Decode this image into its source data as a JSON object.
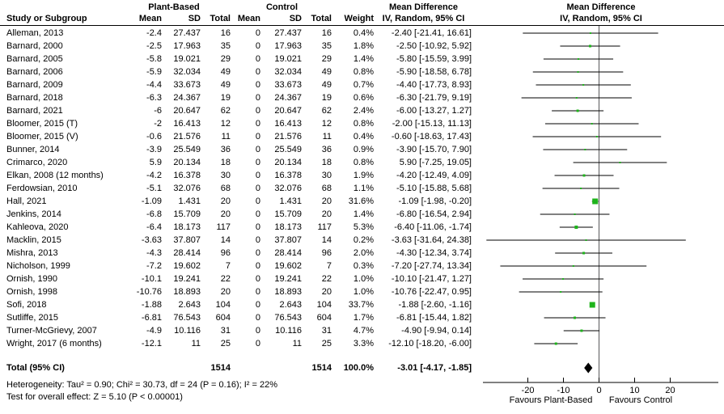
{
  "labels": {
    "study": "Study or Subgroup",
    "group1": "Plant-Based",
    "group2": "Control",
    "mean": "Mean",
    "sd": "SD",
    "total": "Total",
    "weight": "Weight",
    "md_title": "Mean Difference",
    "md_method": "IV, Random, 95% CI"
  },
  "chart_data": {
    "type": "forest",
    "title": "Mean Difference",
    "effect_measure": "IV, Random, 95% CI",
    "studies": [
      {
        "name": "Alleman, 2013",
        "mean1": "-2.4",
        "sd1": "27.437",
        "n1": "16",
        "mean2": "0",
        "sd2": "27.437",
        "n2": "16",
        "weight": "0.4%",
        "w": 0.4,
        "md": -2.4,
        "lo": -21.41,
        "hi": 16.61,
        "ci_text": "-2.40 [-21.41, 16.61]"
      },
      {
        "name": "Barnard, 2000",
        "mean1": "-2.5",
        "sd1": "17.963",
        "n1": "35",
        "mean2": "0",
        "sd2": "17.963",
        "n2": "35",
        "weight": "1.8%",
        "w": 1.8,
        "md": -2.5,
        "lo": -10.92,
        "hi": 5.92,
        "ci_text": "-2.50 [-10.92, 5.92]"
      },
      {
        "name": "Barnard, 2005",
        "mean1": "-5.8",
        "sd1": "19.021",
        "n1": "29",
        "mean2": "0",
        "sd2": "19.021",
        "n2": "29",
        "weight": "1.4%",
        "w": 1.4,
        "md": -5.8,
        "lo": -15.59,
        "hi": 3.99,
        "ci_text": "-5.80 [-15.59, 3.99]"
      },
      {
        "name": "Barnard, 2006",
        "mean1": "-5.9",
        "sd1": "32.034",
        "n1": "49",
        "mean2": "0",
        "sd2": "32.034",
        "n2": "49",
        "weight": "0.8%",
        "w": 0.8,
        "md": -5.9,
        "lo": -18.58,
        "hi": 6.78,
        "ci_text": "-5.90 [-18.58, 6.78]"
      },
      {
        "name": "Barnard, 2009",
        "mean1": "-4.4",
        "sd1": "33.673",
        "n1": "49",
        "mean2": "0",
        "sd2": "33.673",
        "n2": "49",
        "weight": "0.7%",
        "w": 0.7,
        "md": -4.4,
        "lo": -17.73,
        "hi": 8.93,
        "ci_text": "-4.40 [-17.73, 8.93]"
      },
      {
        "name": "Barnard, 2018",
        "mean1": "-6.3",
        "sd1": "24.367",
        "n1": "19",
        "mean2": "0",
        "sd2": "24.367",
        "n2": "19",
        "weight": "0.6%",
        "w": 0.6,
        "md": -6.3,
        "lo": -21.79,
        "hi": 9.19,
        "ci_text": "-6.30 [-21.79, 9.19]"
      },
      {
        "name": "Barnard, 2021",
        "mean1": "-6",
        "sd1": "20.647",
        "n1": "62",
        "mean2": "0",
        "sd2": "20.647",
        "n2": "62",
        "weight": "2.4%",
        "w": 2.4,
        "md": -6.0,
        "lo": -13.27,
        "hi": 1.27,
        "ci_text": "-6.00 [-13.27, 1.27]"
      },
      {
        "name": "Bloomer, 2015 (T)",
        "mean1": "-2",
        "sd1": "16.413",
        "n1": "12",
        "mean2": "0",
        "sd2": "16.413",
        "n2": "12",
        "weight": "0.8%",
        "w": 0.8,
        "md": -2.0,
        "lo": -15.13,
        "hi": 11.13,
        "ci_text": "-2.00 [-15.13, 11.13]"
      },
      {
        "name": "Bloomer, 2015 (V)",
        "mean1": "-0.6",
        "sd1": "21.576",
        "n1": "11",
        "mean2": "0",
        "sd2": "21.576",
        "n2": "11",
        "weight": "0.4%",
        "w": 0.4,
        "md": -0.6,
        "lo": -18.63,
        "hi": 17.43,
        "ci_text": "-0.60 [-18.63, 17.43]"
      },
      {
        "name": "Bunner, 2014",
        "mean1": "-3.9",
        "sd1": "25.549",
        "n1": "36",
        "mean2": "0",
        "sd2": "25.549",
        "n2": "36",
        "weight": "0.9%",
        "w": 0.9,
        "md": -3.9,
        "lo": -15.7,
        "hi": 7.9,
        "ci_text": "-3.90 [-15.70, 7.90]"
      },
      {
        "name": "Crimarco, 2020",
        "mean1": "5.9",
        "sd1": "20.134",
        "n1": "18",
        "mean2": "0",
        "sd2": "20.134",
        "n2": "18",
        "weight": "0.8%",
        "w": 0.8,
        "md": 5.9,
        "lo": -7.25,
        "hi": 19.05,
        "ci_text": "5.90 [-7.25, 19.05]"
      },
      {
        "name": "Elkan, 2008 (12 months)",
        "mean1": "-4.2",
        "sd1": "16.378",
        "n1": "30",
        "mean2": "0",
        "sd2": "16.378",
        "n2": "30",
        "weight": "1.9%",
        "w": 1.9,
        "md": -4.2,
        "lo": -12.49,
        "hi": 4.09,
        "ci_text": "-4.20 [-12.49, 4.09]"
      },
      {
        "name": "Ferdowsian, 2010",
        "mean1": "-5.1",
        "sd1": "32.076",
        "n1": "68",
        "mean2": "0",
        "sd2": "32.076",
        "n2": "68",
        "weight": "1.1%",
        "w": 1.1,
        "md": -5.1,
        "lo": -15.88,
        "hi": 5.68,
        "ci_text": "-5.10 [-15.88, 5.68]"
      },
      {
        "name": "Hall, 2021",
        "mean1": "-1.09",
        "sd1": "1.431",
        "n1": "20",
        "mean2": "0",
        "sd2": "1.431",
        "n2": "20",
        "weight": "31.6%",
        "w": 31.6,
        "md": -1.09,
        "lo": -1.98,
        "hi": -0.2,
        "ci_text": "-1.09 [-1.98, -0.20]"
      },
      {
        "name": "Jenkins, 2014",
        "mean1": "-6.8",
        "sd1": "15.709",
        "n1": "20",
        "mean2": "0",
        "sd2": "15.709",
        "n2": "20",
        "weight": "1.4%",
        "w": 1.4,
        "md": -6.8,
        "lo": -16.54,
        "hi": 2.94,
        "ci_text": "-6.80 [-16.54, 2.94]"
      },
      {
        "name": "Kahleova, 2020",
        "mean1": "-6.4",
        "sd1": "18.173",
        "n1": "117",
        "mean2": "0",
        "sd2": "18.173",
        "n2": "117",
        "weight": "5.3%",
        "w": 5.3,
        "md": -6.4,
        "lo": -11.06,
        "hi": -1.74,
        "ci_text": "-6.40 [-11.06, -1.74]"
      },
      {
        "name": "Macklin, 2015",
        "mean1": "-3.63",
        "sd1": "37.807",
        "n1": "14",
        "mean2": "0",
        "sd2": "37.807",
        "n2": "14",
        "weight": "0.2%",
        "w": 0.2,
        "md": -3.63,
        "lo": -31.64,
        "hi": 24.38,
        "ci_text": "-3.63 [-31.64, 24.38]"
      },
      {
        "name": "Mishra, 2013",
        "mean1": "-4.3",
        "sd1": "28.414",
        "n1": "96",
        "mean2": "0",
        "sd2": "28.414",
        "n2": "96",
        "weight": "2.0%",
        "w": 2.0,
        "md": -4.3,
        "lo": -12.34,
        "hi": 3.74,
        "ci_text": "-4.30 [-12.34, 3.74]"
      },
      {
        "name": "Nicholson, 1999",
        "mean1": "-7.2",
        "sd1": "19.602",
        "n1": "7",
        "mean2": "0",
        "sd2": "19.602",
        "n2": "7",
        "weight": "0.3%",
        "w": 0.3,
        "md": -7.2,
        "lo": -27.74,
        "hi": 13.34,
        "ci_text": "-7.20 [-27.74, 13.34]"
      },
      {
        "name": "Ornish, 1990",
        "mean1": "-10.1",
        "sd1": "19.241",
        "n1": "22",
        "mean2": "0",
        "sd2": "19.241",
        "n2": "22",
        "weight": "1.0%",
        "w": 1.0,
        "md": -10.1,
        "lo": -21.47,
        "hi": 1.27,
        "ci_text": "-10.10 [-21.47, 1.27]"
      },
      {
        "name": "Ornish, 1998",
        "mean1": "-10.76",
        "sd1": "18.893",
        "n1": "20",
        "mean2": "0",
        "sd2": "18.893",
        "n2": "20",
        "weight": "1.0%",
        "w": 1.0,
        "md": -10.76,
        "lo": -22.47,
        "hi": 0.95,
        "ci_text": "-10.76 [-22.47, 0.95]"
      },
      {
        "name": "Sofi, 2018",
        "mean1": "-1.88",
        "sd1": "2.643",
        "n1": "104",
        "mean2": "0",
        "sd2": "2.643",
        "n2": "104",
        "weight": "33.7%",
        "w": 33.7,
        "md": -1.88,
        "lo": -2.6,
        "hi": -1.16,
        "ci_text": "-1.88 [-2.60, -1.16]"
      },
      {
        "name": "Sutliffe, 2015",
        "mean1": "-6.81",
        "sd1": "76.543",
        "n1": "604",
        "mean2": "0",
        "sd2": "76.543",
        "n2": "604",
        "weight": "1.7%",
        "w": 1.7,
        "md": -6.81,
        "lo": -15.44,
        "hi": 1.82,
        "ci_text": "-6.81 [-15.44, 1.82]"
      },
      {
        "name": "Turner-McGrievy, 2007",
        "mean1": "-4.9",
        "sd1": "10.116",
        "n1": "31",
        "mean2": "0",
        "sd2": "10.116",
        "n2": "31",
        "weight": "4.7%",
        "w": 4.7,
        "md": -4.9,
        "lo": -9.94,
        "hi": 0.14,
        "ci_text": "-4.90 [-9.94, 0.14]"
      },
      {
        "name": "Wright, 2017 (6 months)",
        "mean1": "-12.1",
        "sd1": "11",
        "n1": "25",
        "mean2": "0",
        "sd2": "11",
        "n2": "25",
        "weight": "3.3%",
        "w": 3.3,
        "md": -12.1,
        "lo": -18.2,
        "hi": -6.0,
        "ci_text": "-12.10 [-18.20, -6.00]"
      }
    ],
    "total": {
      "label": "Total (95% CI)",
      "n1": "1514",
      "n2": "1514",
      "weight": "100.0%",
      "md": -3.01,
      "lo": -4.17,
      "hi": -1.85,
      "ci_text": "-3.01 [-4.17, -1.85]"
    },
    "footer": {
      "heterogeneity": "Heterogeneity: Tau² = 0.90; Chi² = 30.73, df = 24 (P = 0.16); I² = 22%",
      "overall_effect": "Test for overall effect: Z = 5.10 (P < 0.00001)"
    },
    "axis": {
      "ticks": [
        -20,
        -10,
        0,
        10,
        20
      ],
      "xmin": -32.5,
      "xmax": 33.5,
      "left_label": "Favours Plant-Based",
      "right_label": "Favours Control"
    },
    "colors": {
      "marker_green": "#1eb41b",
      "line_black": "#000000",
      "zero_line_gray": "#58585a",
      "diamond_black": "#000000"
    }
  }
}
